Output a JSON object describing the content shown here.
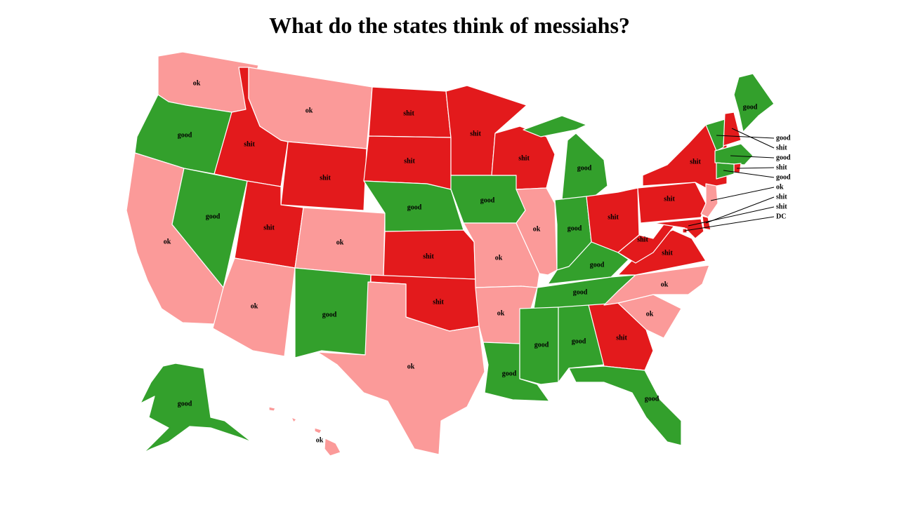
{
  "title": "What do the states think of messiahs?",
  "colors": {
    "good": "#33a02c",
    "shit": "#e31a1c",
    "ok": "#fb9a99"
  },
  "states": [
    {
      "id": "WA",
      "value": "ok"
    },
    {
      "id": "OR",
      "value": "good"
    },
    {
      "id": "CA",
      "value": "ok"
    },
    {
      "id": "NV",
      "value": "good"
    },
    {
      "id": "ID",
      "value": "shit"
    },
    {
      "id": "MT",
      "value": "ok"
    },
    {
      "id": "WY",
      "value": "shit"
    },
    {
      "id": "UT",
      "value": "shit"
    },
    {
      "id": "AZ",
      "value": "ok"
    },
    {
      "id": "CO",
      "value": "ok"
    },
    {
      "id": "NM",
      "value": "good"
    },
    {
      "id": "ND",
      "value": "shit"
    },
    {
      "id": "SD",
      "value": "shit"
    },
    {
      "id": "NE",
      "value": "good"
    },
    {
      "id": "KS",
      "value": "shit"
    },
    {
      "id": "OK",
      "value": "shit"
    },
    {
      "id": "TX",
      "value": "ok"
    },
    {
      "id": "MN",
      "value": "shit"
    },
    {
      "id": "IA",
      "value": "good"
    },
    {
      "id": "MO",
      "value": "ok"
    },
    {
      "id": "AR",
      "value": "ok"
    },
    {
      "id": "LA",
      "value": "good"
    },
    {
      "id": "WI",
      "value": "shit"
    },
    {
      "id": "IL",
      "value": "ok"
    },
    {
      "id": "MI",
      "value": "good"
    },
    {
      "id": "IN",
      "value": "good"
    },
    {
      "id": "OH",
      "value": "shit"
    },
    {
      "id": "KY",
      "value": "good"
    },
    {
      "id": "TN",
      "value": "good"
    },
    {
      "id": "MS",
      "value": "good"
    },
    {
      "id": "AL",
      "value": "good"
    },
    {
      "id": "GA",
      "value": "shit"
    },
    {
      "id": "FL",
      "value": "good"
    },
    {
      "id": "SC",
      "value": "ok"
    },
    {
      "id": "NC",
      "value": "ok"
    },
    {
      "id": "VA",
      "value": "shit"
    },
    {
      "id": "WV",
      "value": "shit"
    },
    {
      "id": "PA",
      "value": "shit"
    },
    {
      "id": "NY",
      "value": "shit"
    },
    {
      "id": "ME",
      "value": "good"
    },
    {
      "id": "VT",
      "value": "good"
    },
    {
      "id": "NH",
      "value": "shit"
    },
    {
      "id": "MA",
      "value": "good"
    },
    {
      "id": "RI",
      "value": "shit"
    },
    {
      "id": "CT",
      "value": "good"
    },
    {
      "id": "NJ",
      "value": "ok"
    },
    {
      "id": "DE",
      "value": "shit"
    },
    {
      "id": "MD",
      "value": "shit"
    },
    {
      "id": "DC",
      "value": "DC"
    },
    {
      "id": "AK",
      "value": "good"
    },
    {
      "id": "HI",
      "value": "ok"
    }
  ],
  "callout_ids": [
    "VT",
    "NH",
    "MA",
    "RI",
    "CT",
    "NJ",
    "DE",
    "MD",
    "DC"
  ]
}
